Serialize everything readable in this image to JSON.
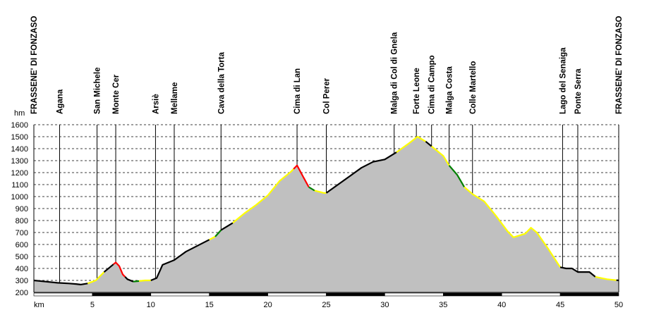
{
  "chart_data": {
    "type": "area",
    "title": "",
    "xlabel": "km",
    "ylabel": "hm",
    "xlim": [
      0,
      50
    ],
    "ylim": [
      200,
      1600
    ],
    "grid": true,
    "x_ticks": [
      5,
      10,
      15,
      20,
      25,
      30,
      35,
      40,
      45,
      50
    ],
    "y_ticks": [
      200,
      300,
      400,
      500,
      600,
      700,
      800,
      900,
      1000,
      1100,
      1200,
      1300,
      1400,
      1500,
      1600
    ],
    "colors": {
      "fill": "#c0c0c0",
      "black": "#000000",
      "yellow": "#ffff00",
      "red": "#ff0000",
      "green": "#008000"
    },
    "waypoints": [
      {
        "name": "FRASSENE' DI FONZASO",
        "km": 0
      },
      {
        "name": "Agana",
        "km": 2.2
      },
      {
        "name": "San Michele",
        "km": 5.4
      },
      {
        "name": "Monte Cer",
        "km": 7.0
      },
      {
        "name": "Arsiè",
        "km": 10.4
      },
      {
        "name": "Mellame",
        "km": 12.0
      },
      {
        "name": "Cava della Torta",
        "km": 16.0
      },
      {
        "name": "Cima di Lan",
        "km": 22.5
      },
      {
        "name": "Col Perer",
        "km": 25.0
      },
      {
        "name": "Malga di Col di Gnela",
        "km": 30.8
      },
      {
        "name": "Forte Leone",
        "km": 32.7
      },
      {
        "name": "Cima di Campo",
        "km": 34.0
      },
      {
        "name": "Malga Costa",
        "km": 35.5
      },
      {
        "name": "Colle Martello",
        "km": 37.5
      },
      {
        "name": "Lago del Senaiga",
        "km": 45.2
      },
      {
        "name": "Ponte Serra",
        "km": 46.5
      },
      {
        "name": "FRASSENE' DI FONZASO",
        "km": 50
      }
    ],
    "profile": [
      [
        0,
        300
      ],
      [
        1,
        290
      ],
      [
        2,
        280
      ],
      [
        3,
        275
      ],
      [
        3.6,
        270
      ],
      [
        4,
        265
      ],
      [
        4.6,
        275
      ],
      [
        5.3,
        300
      ],
      [
        6,
        370
      ],
      [
        6.5,
        410
      ],
      [
        7,
        450
      ],
      [
        7.3,
        420
      ],
      [
        7.6,
        350
      ],
      [
        8,
        310
      ],
      [
        8.5,
        290
      ],
      [
        9,
        295
      ],
      [
        9.5,
        300
      ],
      [
        10,
        300
      ],
      [
        10.5,
        320
      ],
      [
        11,
        430
      ],
      [
        11.5,
        450
      ],
      [
        12,
        470
      ],
      [
        13,
        540
      ],
      [
        14,
        590
      ],
      [
        15,
        640
      ],
      [
        15.5,
        665
      ],
      [
        16,
        720
      ],
      [
        17,
        780
      ],
      [
        18,
        860
      ],
      [
        19,
        930
      ],
      [
        20,
        1010
      ],
      [
        21,
        1130
      ],
      [
        22,
        1210
      ],
      [
        22.5,
        1260
      ],
      [
        23,
        1170
      ],
      [
        23.5,
        1080
      ],
      [
        24,
        1050
      ],
      [
        24.8,
        1030
      ],
      [
        25,
        1030
      ],
      [
        26,
        1100
      ],
      [
        27,
        1170
      ],
      [
        28,
        1240
      ],
      [
        29,
        1290
      ],
      [
        30,
        1310
      ],
      [
        31,
        1370
      ],
      [
        32,
        1440
      ],
      [
        32.8,
        1500
      ],
      [
        33.5,
        1460
      ],
      [
        34,
        1420
      ],
      [
        35,
        1340
      ],
      [
        35.5,
        1260
      ],
      [
        36.2,
        1180
      ],
      [
        36.8,
        1080
      ],
      [
        37.5,
        1020
      ],
      [
        38.5,
        960
      ],
      [
        39.5,
        840
      ],
      [
        40.5,
        710
      ],
      [
        41,
        660
      ],
      [
        42,
        690
      ],
      [
        42.5,
        740
      ],
      [
        43,
        700
      ],
      [
        44,
        560
      ],
      [
        45,
        410
      ],
      [
        45.5,
        400
      ],
      [
        46,
        400
      ],
      [
        46.5,
        370
      ],
      [
        47.5,
        370
      ],
      [
        48,
        330
      ],
      [
        49,
        310
      ],
      [
        50,
        300
      ]
    ],
    "slope_segments": [
      {
        "from": 0,
        "to": 4.6,
        "color": "black"
      },
      {
        "from": 4.6,
        "to": 6.0,
        "color": "yellow"
      },
      {
        "from": 6.0,
        "to": 6.8,
        "color": "black"
      },
      {
        "from": 6.8,
        "to": 7.8,
        "color": "red"
      },
      {
        "from": 7.8,
        "to": 8.5,
        "color": "black"
      },
      {
        "from": 8.5,
        "to": 9.0,
        "color": "green"
      },
      {
        "from": 9.0,
        "to": 10.0,
        "color": "yellow"
      },
      {
        "from": 10.0,
        "to": 15.0,
        "color": "black"
      },
      {
        "from": 15.0,
        "to": 15.5,
        "color": "yellow"
      },
      {
        "from": 15.5,
        "to": 16.0,
        "color": "green"
      },
      {
        "from": 16.0,
        "to": 17.0,
        "color": "black"
      },
      {
        "from": 17.0,
        "to": 22.2,
        "color": "yellow"
      },
      {
        "from": 22.2,
        "to": 23.5,
        "color": "red"
      },
      {
        "from": 23.5,
        "to": 24.0,
        "color": "green"
      },
      {
        "from": 24.0,
        "to": 25.0,
        "color": "yellow"
      },
      {
        "from": 25.0,
        "to": 31.0,
        "color": "black"
      },
      {
        "from": 31.0,
        "to": 33.5,
        "color": "yellow"
      },
      {
        "from": 33.5,
        "to": 34.0,
        "color": "black"
      },
      {
        "from": 34.0,
        "to": 35.5,
        "color": "yellow"
      },
      {
        "from": 35.5,
        "to": 36.8,
        "color": "green"
      },
      {
        "from": 36.8,
        "to": 45.0,
        "color": "yellow"
      },
      {
        "from": 45.0,
        "to": 48.0,
        "color": "black"
      },
      {
        "from": 48.0,
        "to": 49.8,
        "color": "yellow"
      },
      {
        "from": 49.8,
        "to": 50,
        "color": "black"
      }
    ]
  }
}
